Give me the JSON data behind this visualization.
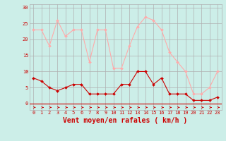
{
  "hours": [
    0,
    1,
    2,
    3,
    4,
    5,
    6,
    7,
    8,
    9,
    10,
    11,
    12,
    13,
    14,
    15,
    16,
    17,
    18,
    19,
    20,
    21,
    22,
    23
  ],
  "vent_moyen": [
    8,
    7,
    5,
    4,
    5,
    6,
    6,
    3,
    3,
    3,
    3,
    6,
    6,
    10,
    10,
    6,
    8,
    3,
    3,
    3,
    1,
    1,
    1,
    2
  ],
  "rafales": [
    23,
    23,
    18,
    26,
    21,
    23,
    23,
    13,
    23,
    23,
    11,
    11,
    18,
    24,
    27,
    26,
    23,
    16,
    13,
    10,
    3,
    3,
    5,
    10
  ],
  "bg_color": "#cceee8",
  "grid_color": "#b0b0b0",
  "line_moyen_color": "#cc0000",
  "line_rafales_color": "#ffaaaa",
  "marker_style": "D",
  "marker_size": 2,
  "xlabel": "Vent moyen/en rafales ( km/h )",
  "xlabel_color": "#cc0000",
  "yticks": [
    0,
    5,
    10,
    15,
    20,
    25,
    30
  ],
  "ylim": [
    -2,
    31
  ],
  "tick_fontsize": 5,
  "label_fontsize": 7
}
